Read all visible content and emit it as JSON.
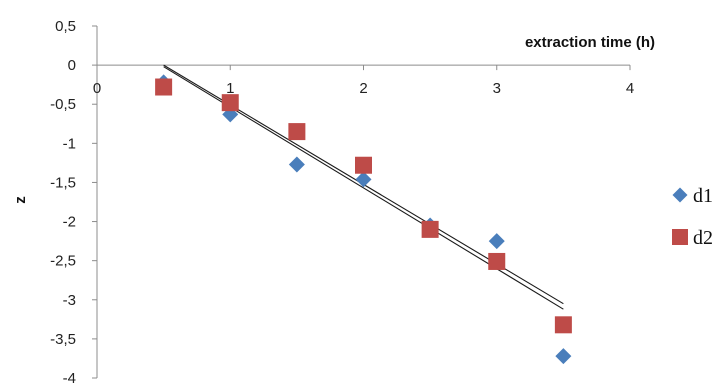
{
  "chart_data": {
    "type": "scatter",
    "xlabel": "extraction time (h)",
    "ylabel": "z",
    "xlim": [
      0,
      4
    ],
    "ylim": [
      -4,
      0.5
    ],
    "x_ticks": [
      "0",
      "1",
      "2",
      "3",
      "4"
    ],
    "x_tick_values": [
      0,
      1,
      2,
      3,
      4
    ],
    "y_ticks": [
      "0,5",
      "0",
      "-0,5",
      "-1",
      "-1,5",
      "-2",
      "-2,5",
      "-3",
      "-3,5",
      "-4"
    ],
    "y_tick_values": [
      0.5,
      0,
      -0.5,
      -1,
      -1.5,
      -2,
      -2.5,
      -3,
      -3.5,
      -4
    ],
    "grid": false,
    "legend_position": "right",
    "series": [
      {
        "name": "d1",
        "marker": "diamond",
        "color": "#4A7EBB",
        "points": [
          {
            "x": 0.5,
            "y": -0.22
          },
          {
            "x": 1.0,
            "y": -0.63
          },
          {
            "x": 1.5,
            "y": -1.27
          },
          {
            "x": 2.0,
            "y": -1.46
          },
          {
            "x": 2.5,
            "y": -2.05
          },
          {
            "x": 3.0,
            "y": -2.25
          },
          {
            "x": 3.5,
            "y": -3.72
          }
        ],
        "trendline": {
          "x": [
            0.5,
            3.5
          ],
          "y": [
            -0.02,
            -3.12
          ]
        }
      },
      {
        "name": "d2",
        "marker": "square",
        "color": "#BE4B48",
        "points": [
          {
            "x": 0.5,
            "y": -0.28
          },
          {
            "x": 1.0,
            "y": -0.48
          },
          {
            "x": 1.5,
            "y": -0.85
          },
          {
            "x": 2.0,
            "y": -1.28
          },
          {
            "x": 2.5,
            "y": -2.1
          },
          {
            "x": 3.0,
            "y": -2.51
          },
          {
            "x": 3.5,
            "y": -3.32
          }
        ],
        "trendline": {
          "x": [
            0.5,
            3.5
          ],
          "y": [
            0.0,
            -3.05
          ]
        }
      }
    ]
  }
}
